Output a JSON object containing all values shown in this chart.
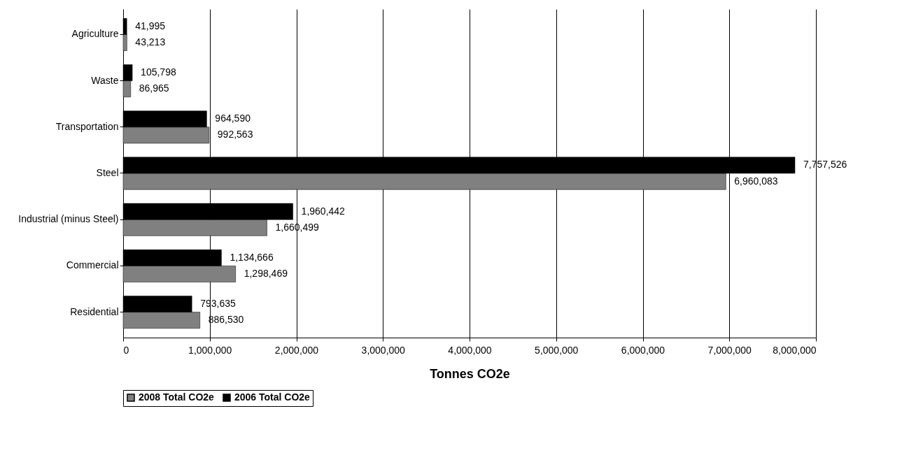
{
  "chart_data": {
    "type": "bar",
    "orientation": "horizontal",
    "xlabel": "Tonnes CO2e",
    "categories": [
      "Agriculture",
      "Waste",
      "Transportation",
      "Steel",
      "Industrial (minus Steel)",
      "Commercial",
      "Residential"
    ],
    "series": [
      {
        "name": "2008 Total CO2e",
        "color": "#808080",
        "values": [
          43213,
          86965,
          992563,
          6960083,
          1660499,
          1298469,
          886530
        ],
        "value_labels": [
          "43,213",
          "86,965",
          "992,563",
          "6,960,083",
          "1,660,499",
          "1,298,469",
          "886,530"
        ]
      },
      {
        "name": "2006 Total CO2e",
        "color": "#000000",
        "values": [
          41995,
          105798,
          964590,
          7757526,
          1960442,
          1134666,
          793635
        ],
        "value_labels": [
          "41,995",
          "105,798",
          "964,590",
          "7,757,526",
          "1,960,442",
          "1,134,666",
          "793,635"
        ]
      }
    ],
    "xlim": [
      0,
      8000000
    ],
    "xticks": [
      0,
      {
        "value": 1000000,
        "label": "1,000,000"
      },
      {
        "value": 2000000,
        "label": "2,000,000"
      },
      {
        "value": 3000000,
        "label": "3,000,000"
      },
      {
        "value": 4000000,
        "label": "4,000,000"
      },
      {
        "value": 5000000,
        "label": "5,000,000"
      },
      {
        "value": 6000000,
        "label": "6,000,000"
      },
      {
        "value": 7000000,
        "label": "7,000,000"
      },
      {
        "value": 8000000,
        "label": "8,000,000"
      }
    ],
    "grid": "x",
    "legend": "bottom"
  }
}
